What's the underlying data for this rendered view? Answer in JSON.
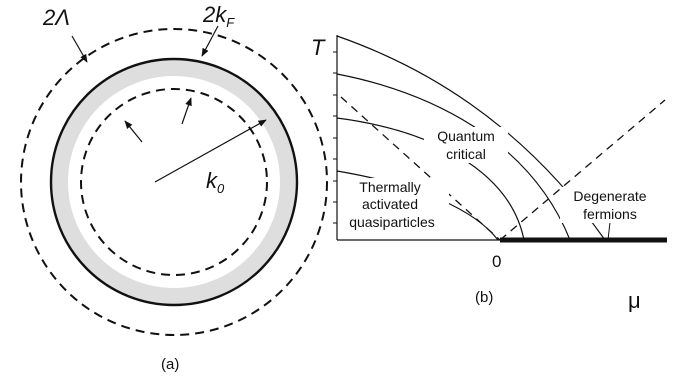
{
  "panel_a": {
    "caption": "(a)",
    "cutoff_label_main": "2Λ",
    "fermi_label_main": "2k",
    "fermi_label_sub": "F",
    "radius_label_main": "k",
    "radius_label_sub": "0"
  },
  "panel_b": {
    "caption": "(b)",
    "y_axis_label": "T",
    "x_axis_label": "μ",
    "origin_label": "0",
    "regions": {
      "quantum_critical": [
        "Quantum",
        "critical"
      ],
      "thermally_activated": [
        "Thermally",
        "activated",
        "quasiparticles"
      ],
      "degenerate_fermions": [
        "Degenerate",
        "fermions"
      ]
    }
  },
  "colors": {
    "ink": "#111111",
    "shell": "#dedede",
    "background": "#ffffff"
  }
}
